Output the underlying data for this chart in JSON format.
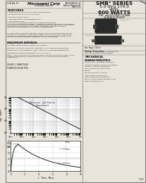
{
  "bg_color": "#e8e4dc",
  "text_color": "#111111",
  "border_color": "#666666",
  "page_num": "3-37",
  "company": "Microsemi Corp",
  "doc_left": "S/FN-494, F4",
  "doc_right": "JANTX/JANTXV, 47\nAerojet General, 60\nJAS-35-35",
  "title_line1": "SMB¹ SERIES",
  "title_line2": "5.0 thru 170.0",
  "title_line3": "Volts",
  "title_line4": "600 WATTS",
  "subtitle": "UNI- and BI-DIRECTIONAL\nSURFACE MOUNT",
  "features_title": "FEATURES",
  "features": [
    "• LOW PROFILE PACKAGE FOR SURFACE MOUNTING",
    "• WORKING RANGE: 5.0 TO 170 VOLTS",
    "• DO-214AA LEAD FINISH",
    "• UNIDIRECTIONAL AND BIDIRECTIONAL",
    "• LOW INDUCTANCE"
  ],
  "desc1": "This series of TVS protection devices, suitable to circuit within\nperformance mountable packages, is designed to optimize board space. Packaged for\nuse with no flow-mountable leadage automated assembly equipment. Manufactured\ncan be plated on polished circuit boards and ceramic substrates to prevent\ntransverse contamination from transient voltage damage.",
  "desc2": "The SMB series, called the SMB series, drawing a non-unidirectional pulse, can be\nused to protect sensitive circuits from ambient transients induced by lightning and\ninductive load switching. With a response time of 1 x 10 seconds (Unidirectional)\nthey are also effective against electrostatic discharge and NEMP.",
  "max_title": "MAXIMUM RATINGS",
  "max_items": [
    "600 watts of Peak Power dissipation (10 x 1000μs)",
    "Transient: 10 volts for Vmax rated lower than 1 in 10² seconds (Unidirectional)",
    "Peak/hold-on current ratings (In Amps): 5.0W at 25°C (Excluding Bidirectional)",
    "Operating and Storage Temperature: -65°C to +150°C"
  ],
  "note_text": "NOTE:  A 15% is normally achieved accordingly, the max \"Stand-Off Voltage\" Vₘ and\nVWM should be rated at or greater than the DC or continuous peak operating\nvoltage level.",
  "fig1_title": "FIGURE 1: PEAK PULSE\nPOWER VS PULSE TIME",
  "fig1_xlabel": "tp - Pulse Time - secs",
  "fig1_ylabel": "Ppk - Watts",
  "fig2_title": "FIGURE 2\nPULSE WAVEFORM",
  "fig2_xlabel": "t - Time - Msec",
  "mech_title": "MECHANICAL\nCHARACTERISTICS",
  "mech_items": [
    "CASE: Molded surface Mountable,",
    "2.67 x 5.1 x 1.1mm body and plated",
    "(Modified) Hermetic leads, tin leadplated.",
    "POLARITY: Cathode indicated by",
    "band. No marking unidirectional",
    "devices.",
    "WEIGHT: Nominal: 17 mems",
    "(min 0.6 from EIA Pub 481-1)",
    "TAPE & REEL & BULK STORAGE:",
    "EPC-7% or equivalent available to load",
    "tape at mounting place."
  ],
  "footnote": "* NOTE: All SMB series are applicable to\nprior TVS packages specifications.",
  "see_page": "See Page 3.58 for\nPackage Dimensions"
}
